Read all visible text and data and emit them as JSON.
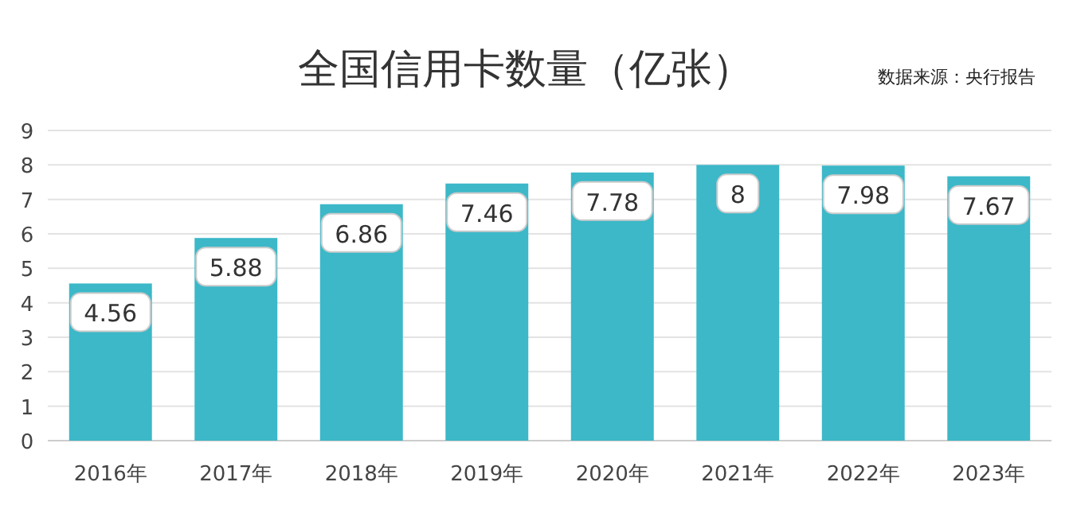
{
  "chart_data": {
    "type": "bar",
    "title": "全国信用卡数量（亿张）",
    "annotations": [
      "数据来源：央行报告"
    ],
    "categories": [
      "2016年",
      "2017年",
      "2018年",
      "2019年",
      "2020年",
      "2021年",
      "2022年",
      "2023年"
    ],
    "values": [
      4.56,
      5.88,
      6.86,
      7.46,
      7.78,
      8,
      7.98,
      7.67
    ],
    "color": "#3cb8c8",
    "ylim": [
      0,
      9
    ],
    "yticks": [
      0,
      1,
      2,
      3,
      4,
      5,
      6,
      7,
      8,
      9
    ],
    "grid": "y",
    "data_labels": true
  }
}
